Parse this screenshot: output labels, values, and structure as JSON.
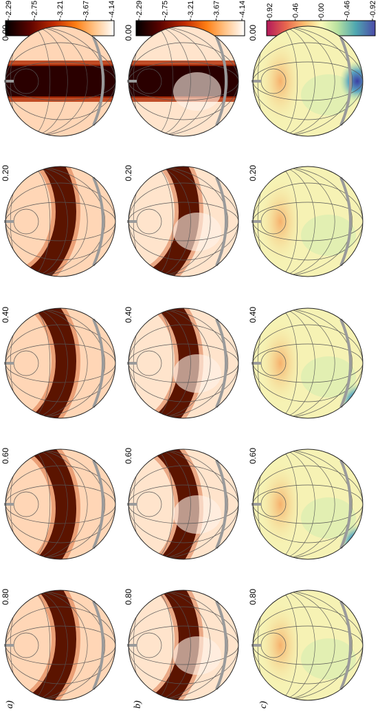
{
  "figure": {
    "panel_labels": [
      "a)",
      "b)",
      "c)"
    ],
    "phases": [
      "0.00",
      "0.20",
      "0.40",
      "0.60",
      "0.80"
    ],
    "colorbars": [
      {
        "ticks": [
          "-2.29",
          "-2.75",
          "-3.21",
          "-3.67",
          "-4.14"
        ],
        "palette": "hot"
      },
      {
        "ticks": [
          "-2.29",
          "-2.75",
          "-3.21",
          "-3.67",
          "-4.14"
        ],
        "palette": "hot"
      },
      {
        "ticks": [
          "0.92",
          "0.46",
          "0.00",
          "-0.46",
          "-0.92"
        ],
        "palette": "spectral"
      }
    ]
  }
}
